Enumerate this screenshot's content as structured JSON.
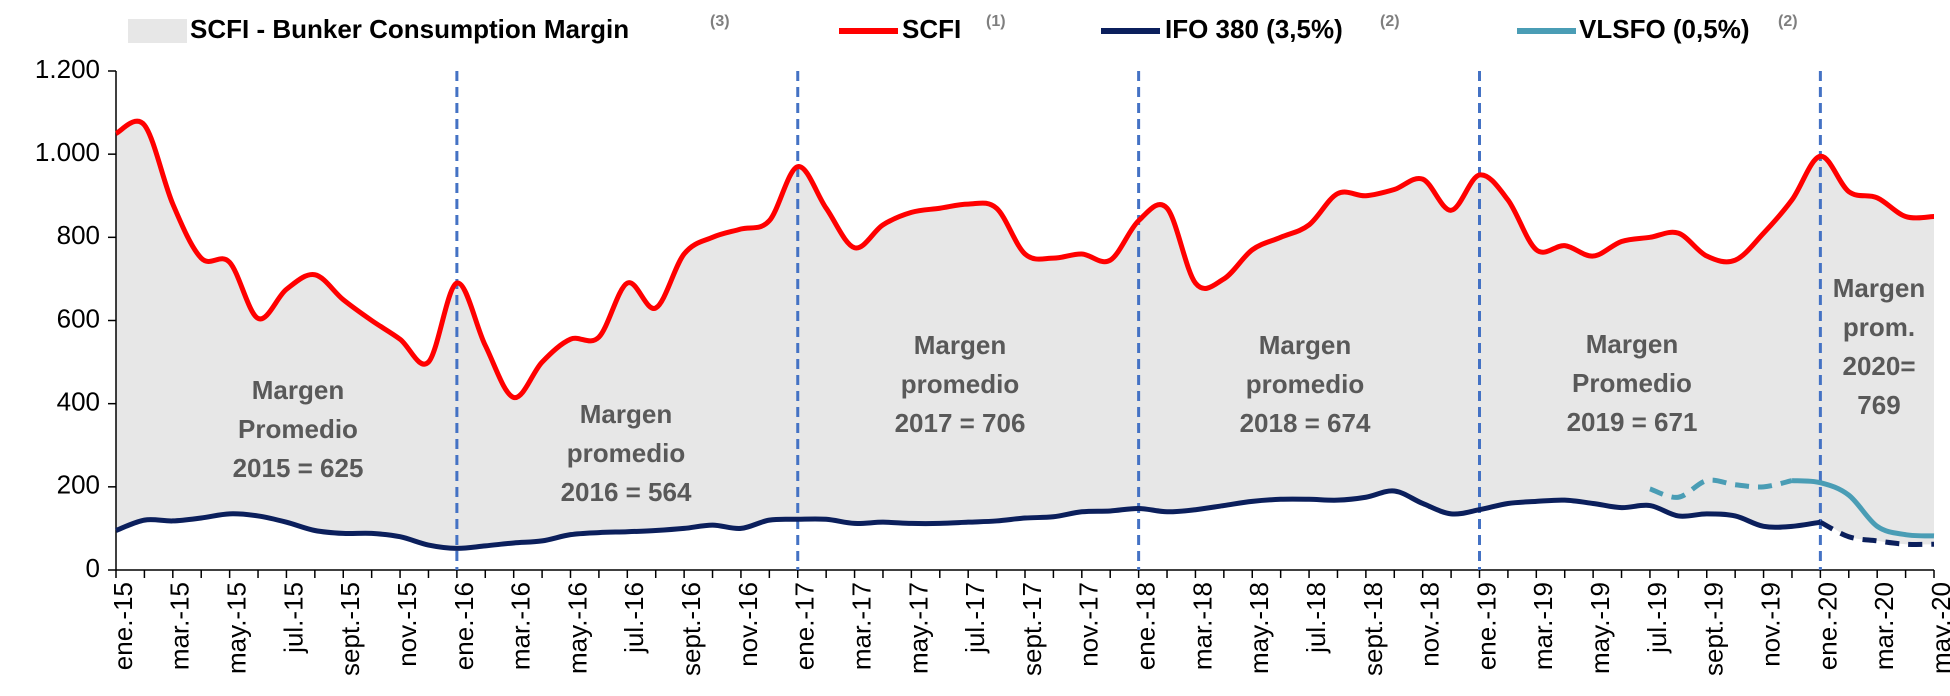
{
  "chart_data": {
    "type": "line",
    "area": {
      "name": "SCFI - Bunker Consumption Margin",
      "note": "(3)",
      "color": "#e7e7e7"
    },
    "categories": [
      "ene.-15",
      null,
      "mar.-15",
      null,
      "may.-15",
      null,
      "jul.-15",
      null,
      "sept.-15",
      null,
      "nov.-15",
      null,
      "ene.-16",
      null,
      "mar.-16",
      null,
      "may.-16",
      null,
      "jul.-16",
      null,
      "sept.-16",
      null,
      "nov.-16",
      null,
      "ene.-17",
      null,
      "mar.-17",
      null,
      "may.-17",
      null,
      "jul.-17",
      null,
      "sept.-17",
      null,
      "nov.-17",
      null,
      "ene.-18",
      null,
      "mar.-18",
      null,
      "may.-18",
      null,
      "jul.-18",
      null,
      "sept.-18",
      null,
      "nov.-18",
      null,
      "ene.-19",
      null,
      "mar.-19",
      null,
      "may.-19",
      null,
      "jul.-19",
      null,
      "sept.-19",
      null,
      "nov.-19",
      null,
      "ene.-20",
      null,
      "mar.-20",
      null,
      "may.-20"
    ],
    "series": [
      {
        "name": "SCFI",
        "note": "(1)",
        "color": "#ff0000",
        "values": [
          1050,
          1070,
          880,
          750,
          740,
          605,
          675,
          710,
          650,
          600,
          555,
          500,
          690,
          540,
          415,
          500,
          555,
          560,
          690,
          630,
          760,
          800,
          820,
          840,
          970,
          870,
          775,
          830,
          860,
          870,
          880,
          870,
          760,
          750,
          760,
          745,
          840,
          870,
          690,
          700,
          770,
          800,
          830,
          905,
          900,
          915,
          940,
          865,
          950,
          890,
          770,
          780,
          755,
          790,
          800,
          810,
          755,
          745,
          810,
          890,
          995,
          910,
          895,
          850,
          850
        ]
      },
      {
        "name": "IFO 380 (3,5%)",
        "note": "(2)",
        "color": "#0b1f5c",
        "dashed_from": 60,
        "values": [
          95,
          120,
          118,
          125,
          135,
          130,
          115,
          95,
          88,
          88,
          80,
          60,
          52,
          58,
          65,
          70,
          85,
          90,
          92,
          95,
          100,
          108,
          100,
          120,
          122,
          122,
          112,
          115,
          112,
          112,
          115,
          118,
          125,
          128,
          140,
          142,
          148,
          140,
          145,
          155,
          165,
          170,
          170,
          168,
          175,
          190,
          160,
          135,
          145,
          160,
          165,
          168,
          160,
          150,
          155,
          130,
          135,
          130,
          105,
          105,
          115,
          80,
          70,
          62,
          62
        ]
      },
      {
        "name": "VLSFO (0,5%)",
        "note": "(2)",
        "color": "#4a9db5",
        "dashed_to": 59,
        "values": [
          null,
          null,
          null,
          null,
          null,
          null,
          null,
          null,
          null,
          null,
          null,
          null,
          null,
          null,
          null,
          null,
          null,
          null,
          null,
          null,
          null,
          null,
          null,
          null,
          null,
          null,
          null,
          null,
          null,
          null,
          null,
          null,
          null,
          null,
          null,
          null,
          null,
          null,
          null,
          null,
          null,
          null,
          null,
          null,
          null,
          null,
          null,
          null,
          null,
          null,
          null,
          null,
          null,
          null,
          195,
          175,
          215,
          205,
          200,
          215,
          210,
          180,
          105,
          85,
          82
        ]
      }
    ],
    "ylim": [
      0,
      1200
    ],
    "yticks": [
      0,
      200,
      400,
      600,
      800,
      {
        "value": 1000,
        "label": "1.000"
      },
      {
        "value": 1200,
        "label": "1.200"
      }
    ],
    "vlines": [
      12,
      24,
      36,
      48,
      60
    ],
    "vline_color": "#4472c4",
    "annotations": [
      [
        "Margen",
        "Promedio",
        "2015 = 625"
      ],
      [
        "Margen",
        "promedio",
        "2016 = 564"
      ],
      [
        "Margen",
        "promedio",
        "2017 = 706"
      ],
      [
        "Margen",
        "promedio",
        "2018 = 674"
      ],
      [
        "Margen",
        "Promedio",
        "2019 = 671"
      ],
      [
        "Margen",
        "prom.",
        "2020=",
        "769"
      ]
    ]
  }
}
